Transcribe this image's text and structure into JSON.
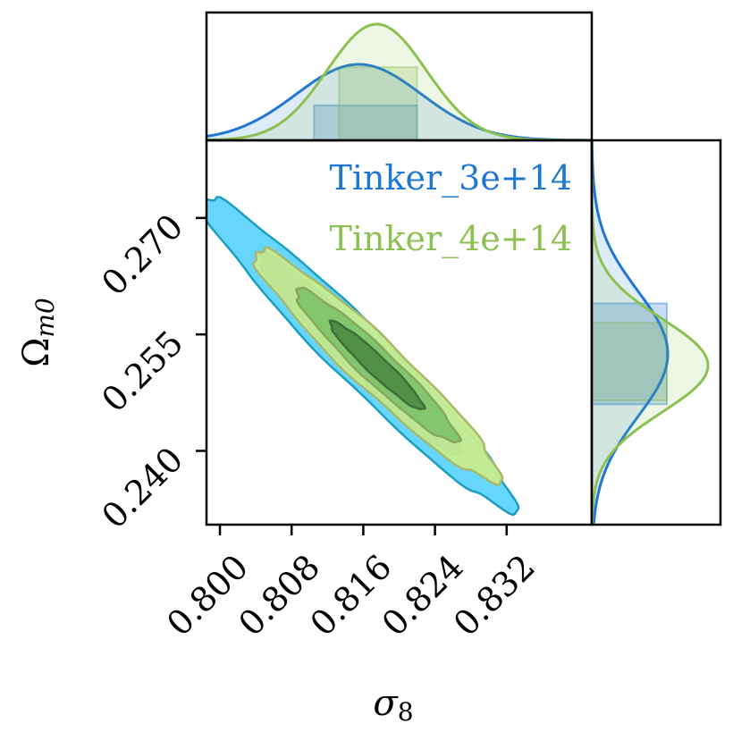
{
  "chart_data": {
    "type": "corner",
    "xlabel": "σ",
    "xlabel_sub": "8",
    "ylabel": "Ω",
    "ylabel_sub": "m0",
    "xlim": [
      0.7985,
      0.8415
    ],
    "ylim": [
      0.2305,
      0.28
    ],
    "xticks": [
      0.8,
      0.808,
      0.816,
      0.824,
      0.832
    ],
    "xtick_labels": [
      "0.800",
      "0.808",
      "0.816",
      "0.824",
      "0.832"
    ],
    "yticks": [
      0.24,
      0.255,
      0.27
    ],
    "ytick_labels": [
      "0.240",
      "0.255",
      "0.270"
    ],
    "series": [
      {
        "name": "Tinker_3e+14",
        "color": "#1f77d4",
        "fill_outer": "#67d6ff",
        "fill_inner": "#3b8fe6",
        "mean": [
          0.8155,
          0.2525
        ],
        "sd": [
          0.007,
          0.0081
        ],
        "rho": -0.968,
        "x_band": [
          0.8105,
          0.822
        ],
        "y_band": [
          0.246,
          0.259
        ]
      },
      {
        "name": "Tinker_4e+14",
        "color": "#8cc152",
        "fill_outer": "#c6ec8e",
        "fill_inner": "#80c46a",
        "fill_core": "#4f8d47",
        "mean": [
          0.8175,
          0.251
        ],
        "sd": [
          0.0055,
          0.006
        ],
        "rho": -0.955,
        "x_band": [
          0.8133,
          0.822
        ],
        "y_band": [
          0.2465,
          0.2565
        ]
      }
    ],
    "legend_position": "top-right"
  }
}
